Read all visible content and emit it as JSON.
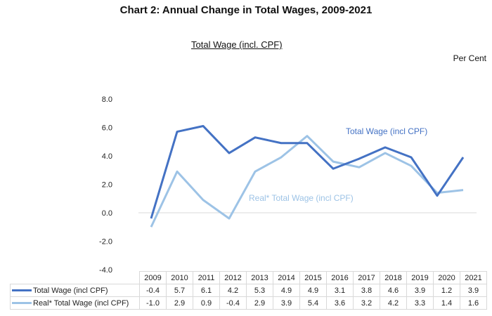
{
  "header": {
    "title": "Chart 2: Annual Change in Total Wages, 2009-2021",
    "subtitle": "Total Wage (incl. CPF)",
    "unit": "Per Cent"
  },
  "chart_data": {
    "type": "line",
    "title": "Chart 2: Annual Change in Total Wages, 2009-2021",
    "subtitle": "Total Wage (incl. CPF)",
    "xlabel": "",
    "ylabel": "Per Cent",
    "x": [
      "2009",
      "2010",
      "2011",
      "2012",
      "2013",
      "2014",
      "2015",
      "2016",
      "2017",
      "2018",
      "2019",
      "2020",
      "2021"
    ],
    "ylim": [
      -4.0,
      8.0
    ],
    "yticks": [
      "8.0",
      "6.0",
      "4.0",
      "2.0",
      "0.0",
      "-2.0",
      "-4.0"
    ],
    "ytick_values": [
      8,
      6,
      4,
      2,
      0,
      -2,
      -4
    ],
    "grid": false,
    "legend": "data-table-bottom",
    "series": [
      {
        "name": "Total Wage (incl CPF)",
        "color": "#4472C4",
        "values": [
          -0.4,
          5.7,
          6.1,
          4.2,
          5.3,
          4.9,
          4.9,
          3.1,
          3.8,
          4.6,
          3.9,
          1.2,
          3.9
        ],
        "display": [
          "-0.4",
          "5.7",
          "6.1",
          "4.2",
          "5.3",
          "4.9",
          "4.9",
          "3.1",
          "3.8",
          "4.6",
          "3.9",
          "1.2",
          "3.9"
        ],
        "annotation": "Total Wage (incl CPF)"
      },
      {
        "name": "Real* Total Wage (incl CPF)",
        "color": "#9DC3E6",
        "values": [
          -1.0,
          2.9,
          0.9,
          -0.4,
          2.9,
          3.9,
          5.4,
          3.6,
          3.2,
          4.2,
          3.3,
          1.4,
          1.6
        ],
        "display": [
          "-1.0",
          "2.9",
          "0.9",
          "-0.4",
          "2.9",
          "3.9",
          "5.4",
          "3.6",
          "3.2",
          "4.2",
          "3.3",
          "1.4",
          "1.6"
        ],
        "annotation": "Real* Total Wage (incl CPF)"
      }
    ]
  }
}
